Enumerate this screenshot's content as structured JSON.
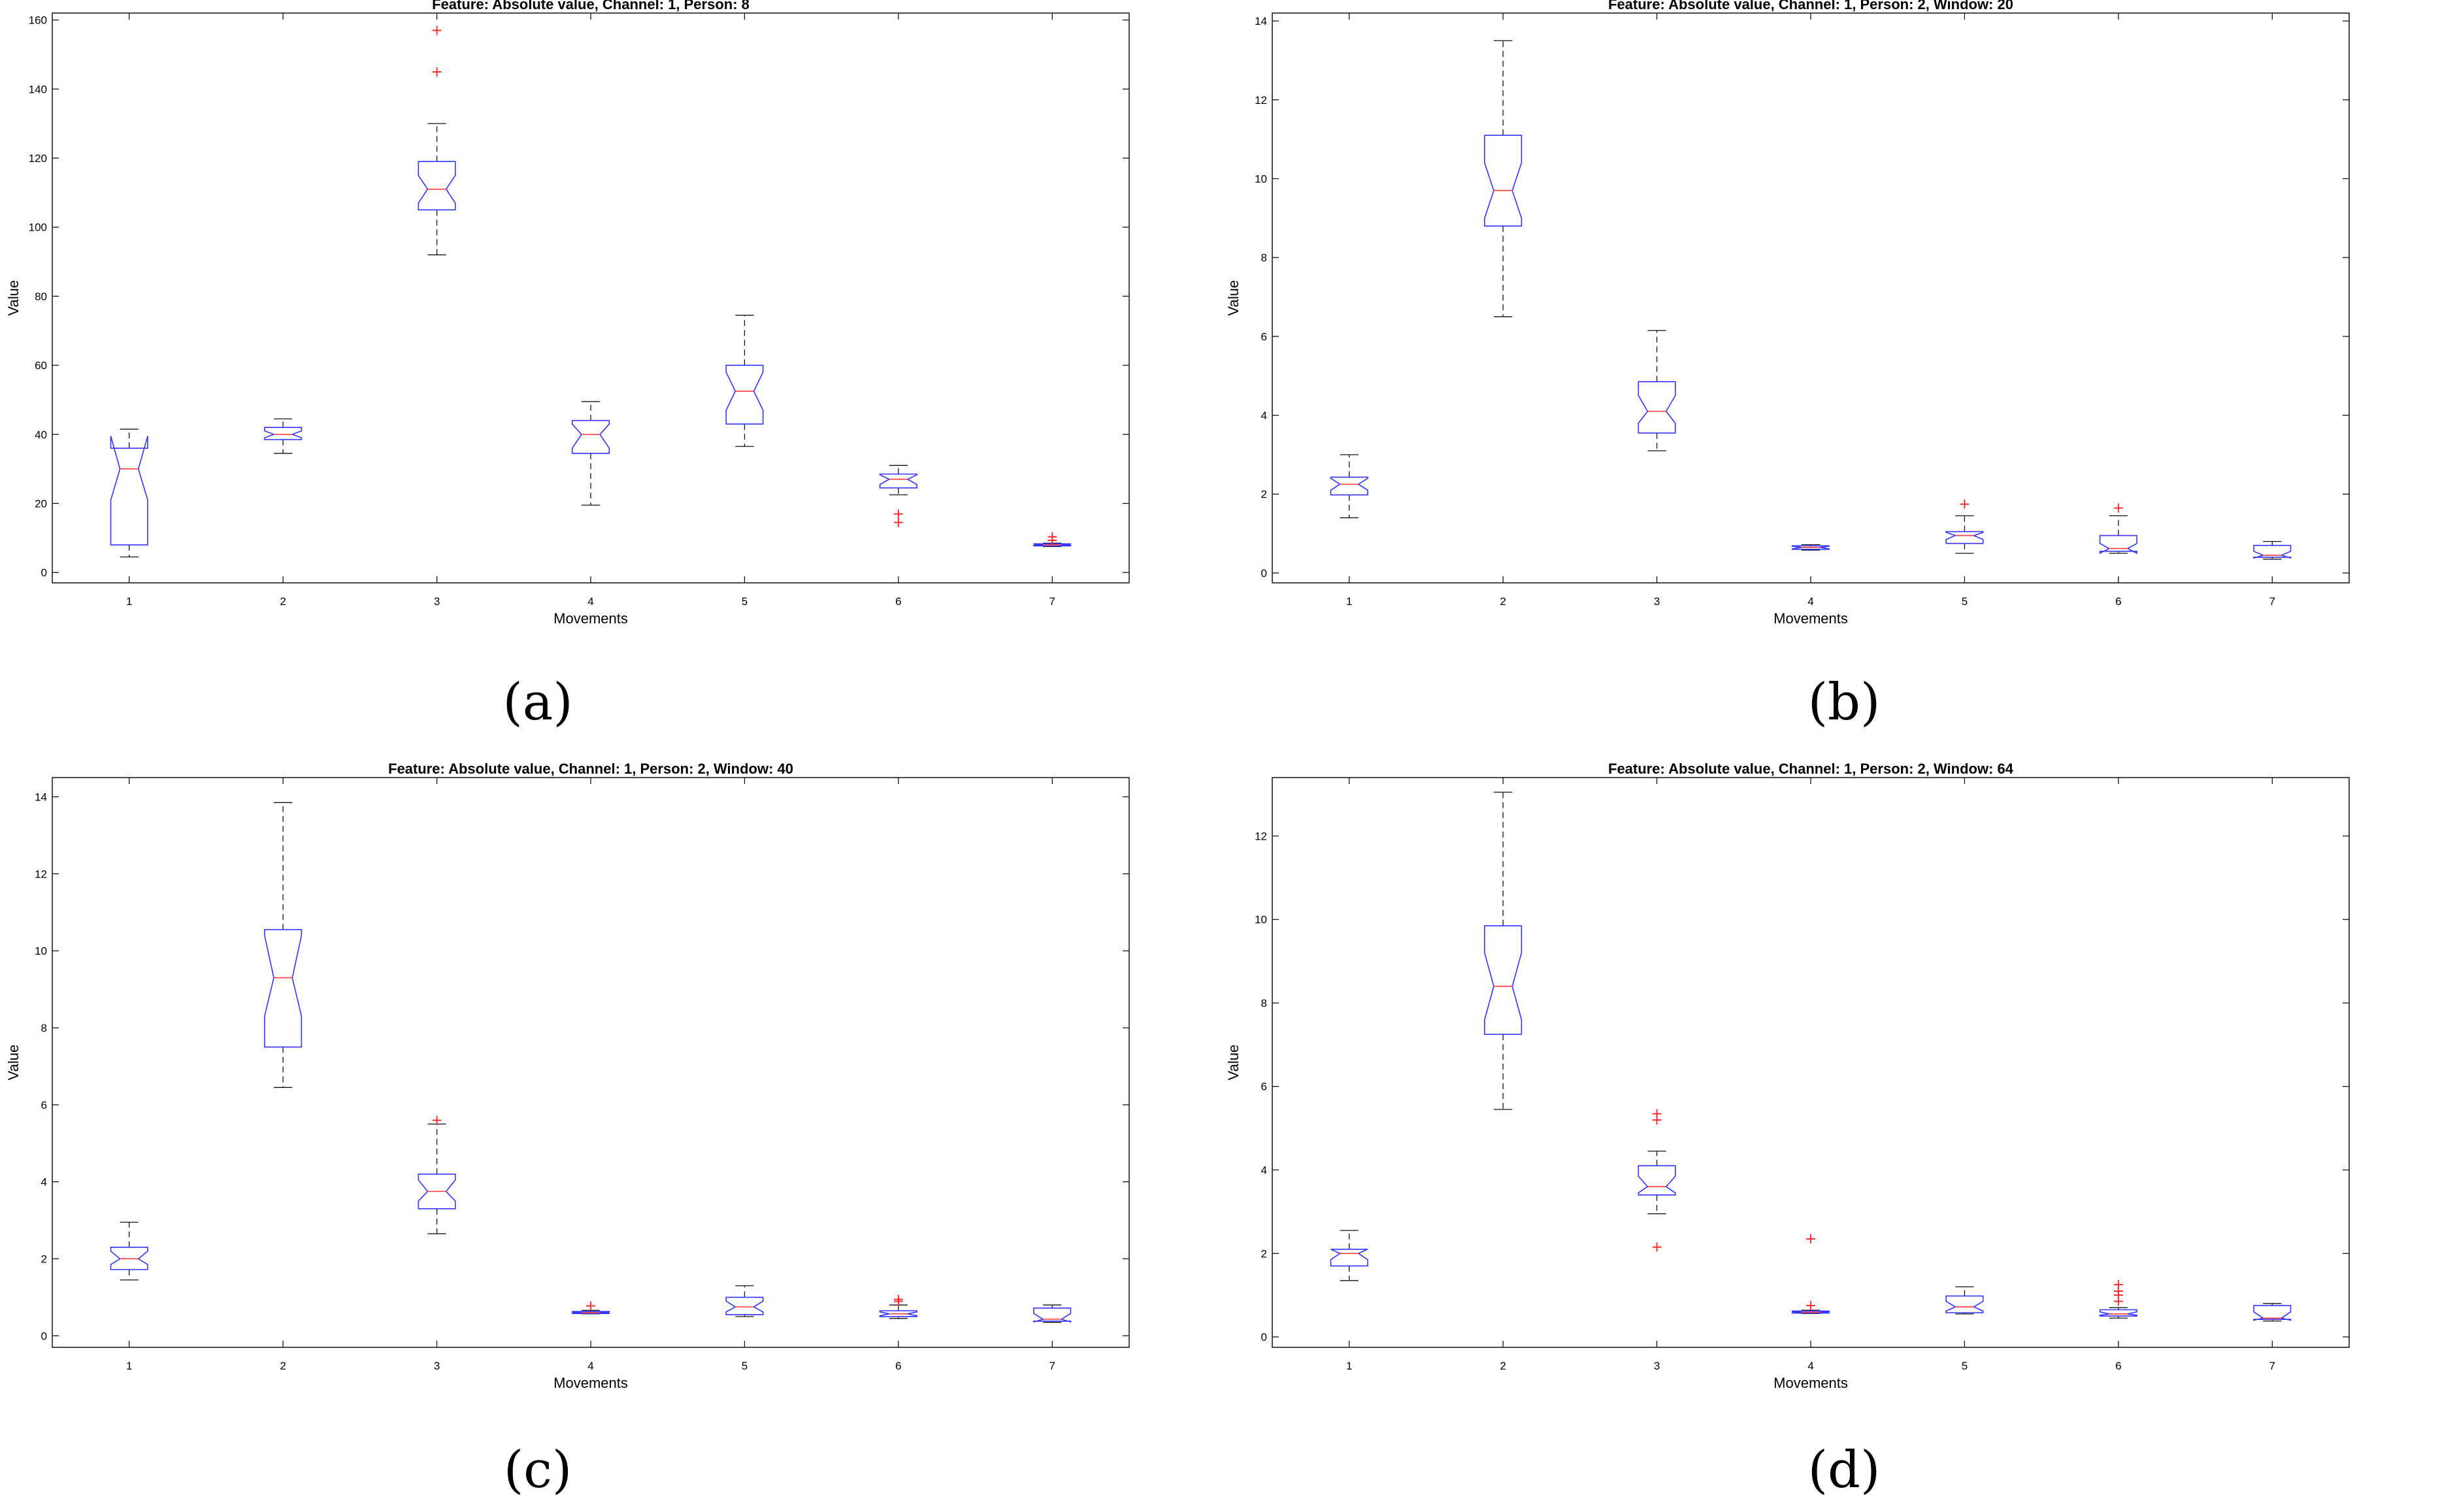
{
  "chart_data": [
    {
      "type": "boxplot",
      "panel": "a",
      "caption": "(a)",
      "title": "Feature: Absolute value, Channel: 1, Person: 8",
      "xlabel": "Movements",
      "ylabel": "Value",
      "categories": [
        "1",
        "2",
        "3",
        "4",
        "5",
        "6",
        "7"
      ],
      "ylim": [
        -3,
        162
      ],
      "yticks": [
        0,
        20,
        40,
        60,
        80,
        100,
        120,
        140,
        160
      ],
      "ytick_labels": [
        "0",
        "20",
        "40",
        "60",
        "80",
        "100",
        "120",
        "140",
        "160"
      ],
      "notched": true,
      "boxes": [
        {
          "label": "1",
          "whisker_low": 4.5,
          "q1": 8,
          "median": 30,
          "q3": 36,
          "whisker_high": 41.5,
          "notch_low": 21,
          "notch_high": 39.5,
          "outliers": []
        },
        {
          "label": "2",
          "whisker_low": 34.5,
          "q1": 38.5,
          "median": 40,
          "q3": 42,
          "whisker_high": 44.5,
          "notch_low": 39,
          "notch_high": 41,
          "outliers": []
        },
        {
          "label": "3",
          "whisker_low": 92,
          "q1": 105,
          "median": 111,
          "q3": 119,
          "whisker_high": 130,
          "notch_low": 107,
          "notch_high": 115,
          "outliers": [
            145,
            157
          ]
        },
        {
          "label": "4",
          "whisker_low": 19.5,
          "q1": 34.5,
          "median": 40,
          "q3": 44,
          "whisker_high": 49.5,
          "notch_low": 36,
          "notch_high": 43,
          "outliers": []
        },
        {
          "label": "5",
          "whisker_low": 36.5,
          "q1": 43,
          "median": 52.5,
          "q3": 60,
          "whisker_high": 74.5,
          "notch_low": 47,
          "notch_high": 58,
          "outliers": []
        },
        {
          "label": "6",
          "whisker_low": 22.5,
          "q1": 24.5,
          "median": 27,
          "q3": 28.5,
          "whisker_high": 31,
          "notch_low": 25.5,
          "notch_high": 28.3,
          "outliers": [
            14.5,
            17
          ]
        },
        {
          "label": "7",
          "whisker_low": 7.5,
          "q1": 7.7,
          "median": 8,
          "q3": 8.3,
          "whisker_high": 8.5,
          "notch_low": 7.8,
          "notch_high": 8.2,
          "outliers": [
            9.3,
            10.3
          ]
        }
      ]
    },
    {
      "type": "boxplot",
      "panel": "b",
      "caption": "(b)",
      "title": "Feature: Absolute value, Channel: 1, Person: 2, Window: 20",
      "xlabel": "Movements",
      "ylabel": "Value",
      "categories": [
        "1",
        "2",
        "3",
        "4",
        "5",
        "6",
        "7"
      ],
      "ylim": [
        -0.25,
        14.2
      ],
      "yticks": [
        0,
        2,
        4,
        6,
        8,
        10,
        12,
        14
      ],
      "ytick_labels": [
        "0",
        "2",
        "4",
        "6",
        "8",
        "10",
        "12",
        "14"
      ],
      "notched": true,
      "boxes": [
        {
          "label": "1",
          "whisker_low": 1.4,
          "q1": 1.98,
          "median": 2.25,
          "q3": 2.43,
          "whisker_high": 3.0,
          "notch_low": 2.1,
          "notch_high": 2.4,
          "outliers": []
        },
        {
          "label": "2",
          "whisker_low": 6.5,
          "q1": 8.8,
          "median": 9.7,
          "q3": 11.1,
          "whisker_high": 13.5,
          "notch_low": 9.0,
          "notch_high": 10.4,
          "outliers": []
        },
        {
          "label": "3",
          "whisker_low": 3.1,
          "q1": 3.55,
          "median": 4.1,
          "q3": 4.85,
          "whisker_high": 6.15,
          "notch_low": 3.8,
          "notch_high": 4.5,
          "outliers": []
        },
        {
          "label": "4",
          "whisker_low": 0.58,
          "q1": 0.6,
          "median": 0.65,
          "q3": 0.69,
          "whisker_high": 0.72,
          "notch_low": 0.61,
          "notch_high": 0.68,
          "outliers": []
        },
        {
          "label": "5",
          "whisker_low": 0.5,
          "q1": 0.75,
          "median": 0.95,
          "q3": 1.05,
          "whisker_high": 1.45,
          "notch_low": 0.85,
          "notch_high": 1.03,
          "outliers": [
            1.75
          ]
        },
        {
          "label": "6",
          "whisker_low": 0.5,
          "q1": 0.55,
          "median": 0.62,
          "q3": 0.95,
          "whisker_high": 1.45,
          "notch_low": 0.5,
          "notch_high": 0.75,
          "outliers": [
            1.65
          ]
        },
        {
          "label": "7",
          "whisker_low": 0.35,
          "q1": 0.4,
          "median": 0.45,
          "q3": 0.7,
          "whisker_high": 0.8,
          "notch_low": 0.38,
          "notch_high": 0.55,
          "outliers": []
        }
      ]
    },
    {
      "type": "boxplot",
      "panel": "c",
      "caption": "(c)",
      "title": "Feature: Absolute value, Channel: 1, Person: 2, Window: 40",
      "xlabel": "Movements",
      "ylabel": "Value",
      "categories": [
        "1",
        "2",
        "3",
        "4",
        "5",
        "6",
        "7"
      ],
      "ylim": [
        -0.3,
        14.5
      ],
      "yticks": [
        0,
        2,
        4,
        6,
        8,
        10,
        12,
        14
      ],
      "ytick_labels": [
        "0",
        "2",
        "4",
        "6",
        "8",
        "10",
        "12",
        "14"
      ],
      "notched": true,
      "boxes": [
        {
          "label": "1",
          "whisker_low": 1.45,
          "q1": 1.72,
          "median": 2.0,
          "q3": 2.3,
          "whisker_high": 2.95,
          "notch_low": 1.85,
          "notch_high": 2.2,
          "outliers": []
        },
        {
          "label": "2",
          "whisker_low": 6.45,
          "q1": 7.5,
          "median": 9.3,
          "q3": 10.55,
          "whisker_high": 13.85,
          "notch_low": 8.3,
          "notch_high": 10.4,
          "outliers": []
        },
        {
          "label": "3",
          "whisker_low": 2.65,
          "q1": 3.3,
          "median": 3.75,
          "q3": 4.2,
          "whisker_high": 5.5,
          "notch_low": 3.5,
          "notch_high": 4.05,
          "outliers": [
            5.6
          ]
        },
        {
          "label": "4",
          "whisker_low": 0.57,
          "q1": 0.58,
          "median": 0.6,
          "q3": 0.63,
          "whisker_high": 0.66,
          "notch_low": 0.59,
          "notch_high": 0.62,
          "outliers": [
            0.78
          ]
        },
        {
          "label": "5",
          "whisker_low": 0.5,
          "q1": 0.55,
          "median": 0.75,
          "q3": 1.0,
          "whisker_high": 1.3,
          "notch_low": 0.62,
          "notch_high": 0.9,
          "outliers": []
        },
        {
          "label": "6",
          "whisker_low": 0.45,
          "q1": 0.5,
          "median": 0.57,
          "q3": 0.65,
          "whisker_high": 0.8,
          "notch_low": 0.52,
          "notch_high": 0.62,
          "outliers": [
            0.9,
            0.95
          ]
        },
        {
          "label": "7",
          "whisker_low": 0.35,
          "q1": 0.38,
          "median": 0.43,
          "q3": 0.72,
          "whisker_high": 0.8,
          "notch_low": 0.36,
          "notch_high": 0.58,
          "outliers": []
        }
      ]
    },
    {
      "type": "boxplot",
      "panel": "d",
      "caption": "(d)",
      "title": "Feature: Absolute value, Channel: 1, Person: 2, Window: 64",
      "xlabel": "Movements",
      "ylabel": "Value",
      "categories": [
        "1",
        "2",
        "3",
        "4",
        "5",
        "6",
        "7"
      ],
      "ylim": [
        -0.25,
        13.4
      ],
      "yticks": [
        0,
        2,
        4,
        6,
        8,
        10,
        12
      ],
      "ytick_labels": [
        "0",
        "2",
        "4",
        "6",
        "8",
        "10",
        "12"
      ],
      "notched": true,
      "boxes": [
        {
          "label": "1",
          "whisker_low": 1.35,
          "q1": 1.7,
          "median": 2.0,
          "q3": 2.1,
          "whisker_high": 2.55,
          "notch_low": 1.85,
          "notch_high": 2.1,
          "outliers": []
        },
        {
          "label": "2",
          "whisker_low": 5.45,
          "q1": 7.25,
          "median": 8.4,
          "q3": 9.85,
          "whisker_high": 13.05,
          "notch_low": 7.6,
          "notch_high": 9.2,
          "outliers": []
        },
        {
          "label": "3",
          "whisker_low": 2.95,
          "q1": 3.4,
          "median": 3.6,
          "q3": 4.1,
          "whisker_high": 4.45,
          "notch_low": 3.45,
          "notch_high": 3.85,
          "outliers": [
            5.2,
            5.35,
            2.15
          ]
        },
        {
          "label": "4",
          "whisker_low": 0.56,
          "q1": 0.57,
          "median": 0.59,
          "q3": 0.62,
          "whisker_high": 0.64,
          "notch_low": 0.58,
          "notch_high": 0.61,
          "outliers": [
            0.75,
            2.35
          ]
        },
        {
          "label": "5",
          "whisker_low": 0.55,
          "q1": 0.58,
          "median": 0.72,
          "q3": 0.98,
          "whisker_high": 1.2,
          "notch_low": 0.62,
          "notch_high": 0.85,
          "outliers": []
        },
        {
          "label": "6",
          "whisker_low": 0.45,
          "q1": 0.5,
          "median": 0.55,
          "q3": 0.65,
          "whisker_high": 0.7,
          "notch_low": 0.52,
          "notch_high": 0.6,
          "outliers": [
            0.85,
            1.0,
            1.1,
            1.25
          ]
        },
        {
          "label": "7",
          "whisker_low": 0.38,
          "q1": 0.42,
          "median": 0.45,
          "q3": 0.75,
          "whisker_high": 0.8,
          "notch_low": 0.4,
          "notch_high": 0.6,
          "outliers": []
        }
      ]
    }
  ],
  "colors": {
    "box": "#3333ff",
    "median": "#ff3333",
    "whisker": "#111111",
    "outlier": "#ff2222",
    "axis": "#000000"
  }
}
